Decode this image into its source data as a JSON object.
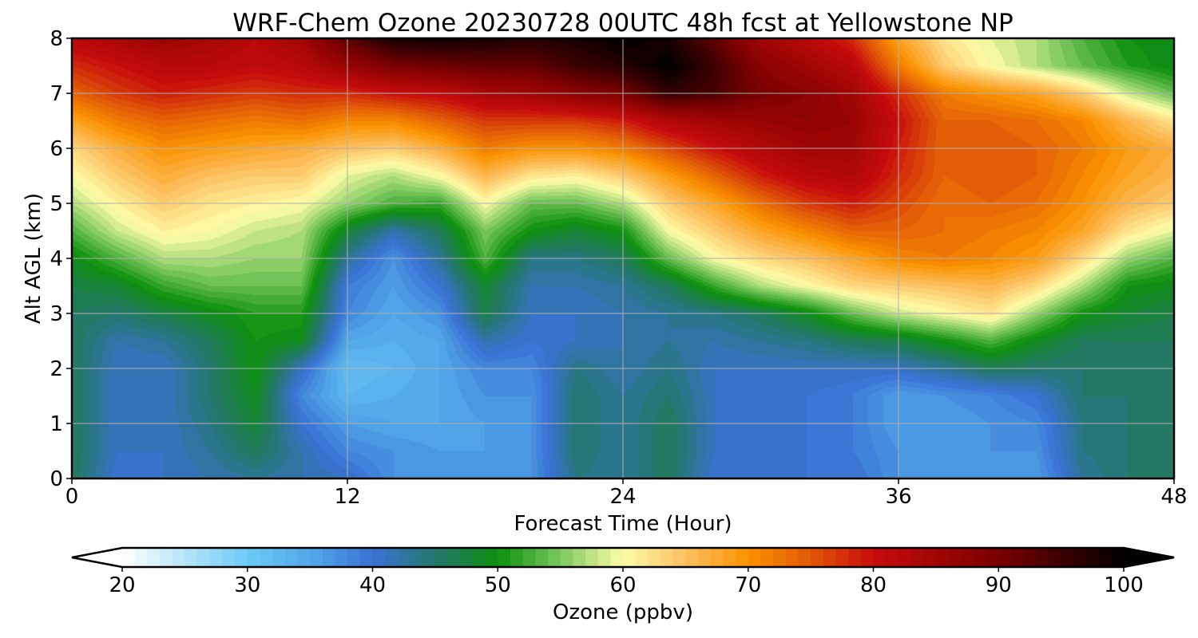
{
  "chart_data": {
    "type": "heatmap",
    "title": "WRF-Chem Ozone  20230728 00UTC 48h fcst at Yellowstone NP",
    "xlabel": "Forecast Time (Hour)",
    "ylabel": "Alt AGL (km)",
    "xlim": [
      0,
      48
    ],
    "ylim": [
      0,
      8
    ],
    "xticks": [
      0,
      12,
      24,
      36,
      48
    ],
    "yticks": [
      0,
      1,
      2,
      3,
      4,
      5,
      6,
      7,
      8
    ],
    "grid": true,
    "colorbar": {
      "label": "Ozone  (ppbv)",
      "range": [
        20,
        100
      ],
      "ticks": [
        20,
        30,
        40,
        50,
        60,
        70,
        80,
        90,
        100
      ],
      "extend": "both",
      "stops": [
        {
          "value": 20,
          "color": "#ffffff"
        },
        {
          "value": 30,
          "color": "#6ccaf5"
        },
        {
          "value": 35,
          "color": "#52a8e8"
        },
        {
          "value": 40,
          "color": "#3a72d4"
        },
        {
          "value": 45,
          "color": "#25766e"
        },
        {
          "value": 50,
          "color": "#0c8f0c"
        },
        {
          "value": 55,
          "color": "#7cc860"
        },
        {
          "value": 60,
          "color": "#fffca8"
        },
        {
          "value": 65,
          "color": "#fcc060"
        },
        {
          "value": 70,
          "color": "#fa9200"
        },
        {
          "value": 75,
          "color": "#e05808"
        },
        {
          "value": 80,
          "color": "#c80c0c"
        },
        {
          "value": 90,
          "color": "#7a0000"
        },
        {
          "value": 100,
          "color": "#000000"
        }
      ]
    },
    "x": [
      0,
      2,
      4,
      6,
      8,
      10,
      12,
      14,
      16,
      18,
      20,
      22,
      24,
      26,
      28,
      30,
      32,
      34,
      36,
      38,
      40,
      42,
      44,
      46,
      48
    ],
    "y": [
      0,
      0.5,
      1,
      1.5,
      2,
      2.5,
      3,
      3.5,
      4,
      4.5,
      5,
      5.5,
      6,
      6.5,
      7,
      7.5,
      8
    ],
    "z": [
      [
        46,
        40,
        41,
        42,
        43,
        42,
        41,
        37,
        37,
        37,
        37,
        44,
        43,
        46,
        40,
        41,
        40,
        40,
        37,
        36,
        37,
        36,
        43,
        45,
        45
      ],
      [
        46,
        41,
        41,
        43,
        46,
        42,
        38,
        37,
        36,
        36,
        37,
        45,
        43,
        46,
        41,
        40,
        40,
        39,
        37,
        36,
        37,
        37,
        44,
        45,
        45
      ],
      [
        46,
        41,
        41,
        44,
        48,
        40,
        36,
        35,
        35,
        36,
        37,
        45,
        43,
        46,
        41,
        40,
        40,
        39,
        36,
        36,
        37,
        38,
        44,
        45,
        45
      ],
      [
        46,
        41,
        41,
        45,
        49,
        38,
        33,
        34,
        35,
        37,
        37,
        45,
        43,
        45,
        41,
        40,
        40,
        39,
        36,
        37,
        38,
        40,
        45,
        45,
        45
      ],
      [
        46,
        41,
        41,
        45,
        50,
        41,
        32,
        33,
        35,
        38,
        38,
        44,
        42,
        44,
        41,
        41,
        41,
        41,
        41,
        43,
        46,
        45,
        45,
        45,
        45
      ],
      [
        46,
        42,
        43,
        46,
        50,
        49,
        35,
        34,
        35,
        42,
        40,
        41,
        42,
        43,
        42,
        43,
        44,
        46,
        47,
        50,
        53,
        49,
        46,
        46,
        46
      ],
      [
        46,
        45,
        47,
        49,
        51,
        51,
        38,
        35,
        37,
        47,
        41,
        41,
        42,
        43,
        44,
        46,
        49,
        54,
        58,
        60,
        62,
        56,
        50,
        48,
        47
      ],
      [
        47,
        48,
        52,
        54,
        54,
        54,
        39,
        36,
        40,
        48,
        42,
        42,
        43,
        46,
        52,
        57,
        60,
        63,
        64,
        65,
        66,
        63,
        57,
        50,
        49
      ],
      [
        49,
        53,
        57,
        57,
        56,
        56,
        43,
        37,
        43,
        53,
        44,
        44,
        46,
        54,
        60,
        63,
        65,
        68,
        71,
        72,
        71,
        69,
        63,
        56,
        53
      ],
      [
        53,
        58,
        61,
        60,
        58,
        57,
        48,
        42,
        46,
        55,
        50,
        48,
        50,
        60,
        64,
        68,
        71,
        74,
        74,
        73,
        72,
        71,
        68,
        62,
        59
      ],
      [
        57,
        61,
        64,
        62,
        61,
        60,
        56,
        53,
        52,
        60,
        54,
        54,
        57,
        64,
        68,
        73,
        77,
        79,
        76,
        73,
        74,
        73,
        70,
        66,
        64
      ],
      [
        60,
        64,
        67,
        65,
        64,
        64,
        59,
        57,
        60,
        66,
        62,
        61,
        64,
        69,
        74,
        79,
        82,
        83,
        78,
        74,
        75,
        74,
        71,
        68,
        66
      ],
      [
        63,
        67,
        70,
        69,
        68,
        67,
        65,
        64,
        67,
        72,
        70,
        70,
        72,
        76,
        80,
        83,
        85,
        85,
        79,
        74,
        75,
        74,
        72,
        69,
        67
      ],
      [
        68,
        72,
        74,
        73,
        72,
        73,
        71,
        71,
        74,
        77,
        77,
        77,
        79,
        83,
        85,
        86,
        87,
        86,
        80,
        74,
        74,
        73,
        71,
        66,
        62
      ],
      [
        74,
        77,
        79,
        78,
        77,
        78,
        78,
        80,
        81,
        84,
        85,
        88,
        90,
        96,
        94,
        90,
        88,
        85,
        78,
        72,
        70,
        68,
        64,
        58,
        54
      ],
      [
        78,
        80,
        82,
        82,
        81,
        82,
        86,
        90,
        91,
        92,
        92,
        95,
        97,
        100,
        95,
        88,
        85,
        82,
        72,
        64,
        60,
        57,
        54,
        51,
        49
      ],
      [
        82,
        84,
        86,
        84,
        82,
        85,
        93,
        98,
        99,
        98,
        97,
        98,
        100,
        98,
        92,
        85,
        82,
        78,
        68,
        62,
        59,
        57,
        53,
        50,
        49
      ]
    ]
  }
}
